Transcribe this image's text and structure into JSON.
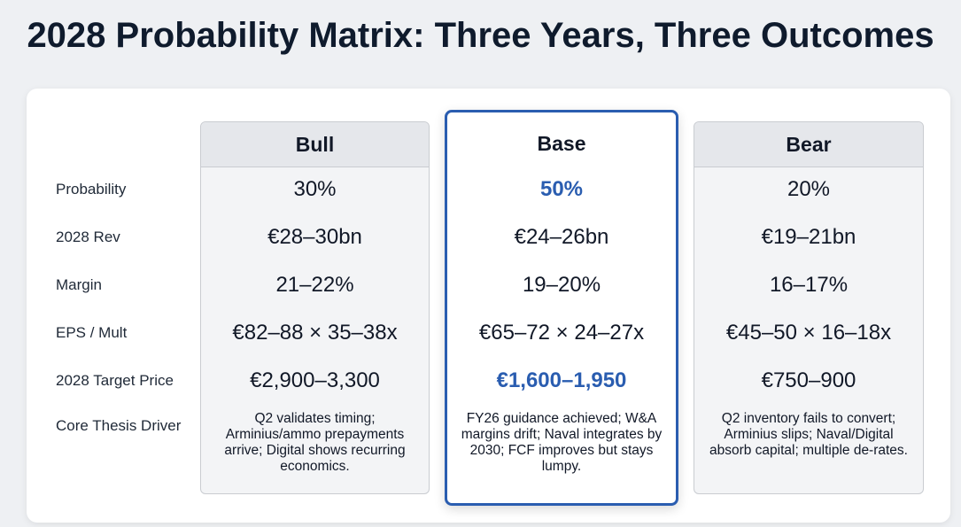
{
  "title": "2028 Probability Matrix: Three Years, Three Outcomes",
  "row_labels": [
    "Probability",
    "2028 Rev",
    "Margin",
    "EPS / Mult",
    "2028 Target Price",
    "Core Thesis Driver"
  ],
  "columns": [
    {
      "name": "Bull",
      "cells": [
        "30%",
        "€28–30bn",
        "21–22%",
        "€82–88 × 35–38x",
        "€2,900–3,300",
        "Q2 validates timing; Arminius/ammo prepayments arrive; Digital shows recurring economics."
      ]
    },
    {
      "name": "Base",
      "cells": [
        "50%",
        "€24–26bn",
        "19–20%",
        "€65–72 × 24–27x",
        "€1,600–1,950",
        "FY26 guidance achieved; W&A margins drift; Naval integrates by 2030; FCF improves but stays lumpy."
      ]
    },
    {
      "name": "Bear",
      "cells": [
        "20%",
        "€19–21bn",
        "16–17%",
        "€45–50 × 16–18x",
        "€750–900",
        "Q2 inventory fails to convert; Arminius slips; Naval/Digital absorb capital; multiple de-rates."
      ]
    }
  ]
}
